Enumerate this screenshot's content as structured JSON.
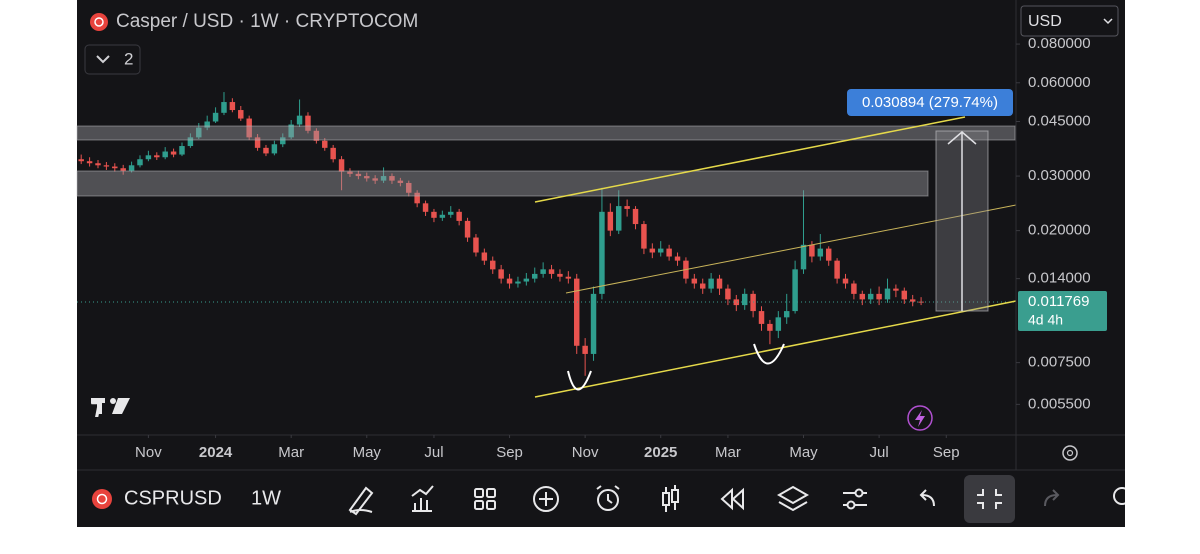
{
  "header": {
    "title": "Casper / USD · 1W · CRYPTOCOM",
    "indicator_count": "2",
    "currency": "USD"
  },
  "chart_data": {
    "type": "candlestick",
    "up_color": "#2f9e8e",
    "down_color": "#e8534f",
    "log_scale": true,
    "xlim": [
      -0.5,
      111.3
    ],
    "xticks": [
      {
        "value": 8,
        "label": "Nov"
      },
      {
        "value": 16,
        "label": "2024"
      },
      {
        "value": 25,
        "label": "Mar"
      },
      {
        "value": 34,
        "label": "May"
      },
      {
        "value": 42,
        "label": "Jul"
      },
      {
        "value": 51,
        "label": "Sep"
      },
      {
        "value": 60,
        "label": "Nov"
      },
      {
        "value": 69,
        "label": "2025"
      },
      {
        "value": 77,
        "label": "Mar"
      },
      {
        "value": 86,
        "label": "May"
      },
      {
        "value": 95,
        "label": "Jul"
      },
      {
        "value": 103,
        "label": "Sep"
      }
    ],
    "ylim": [
      0.00438,
      0.111
    ],
    "yticks": [
      {
        "value": 0.08,
        "label": "0.080000"
      },
      {
        "value": 0.06,
        "label": "0.060000"
      },
      {
        "value": 0.045,
        "label": "0.045000"
      },
      {
        "value": 0.03,
        "label": "0.030000"
      },
      {
        "value": 0.02,
        "label": "0.020000"
      },
      {
        "value": 0.014,
        "label": "0.014000"
      },
      {
        "value": 0.0075,
        "label": "0.007500"
      },
      {
        "value": 0.0055,
        "label": "0.005500"
      }
    ],
    "open": [
      0.034,
      0.0335,
      0.033,
      0.0325,
      0.0322,
      0.0318,
      0.0312,
      0.0325,
      0.034,
      0.035,
      0.0345,
      0.036,
      0.0352,
      0.0375,
      0.04,
      0.043,
      0.045,
      0.048,
      0.052,
      0.049,
      0.046,
      0.04,
      0.037,
      0.0355,
      0.038,
      0.04,
      0.044,
      0.047,
      0.042,
      0.039,
      0.037,
      0.034,
      0.031,
      0.0305,
      0.03,
      0.0295,
      0.029,
      0.03,
      0.029,
      0.0285,
      0.0265,
      0.0245,
      0.023,
      0.022,
      0.0225,
      0.023,
      0.0215,
      0.019,
      0.017,
      0.016,
      0.015,
      0.014,
      0.0135,
      0.0137,
      0.014,
      0.0145,
      0.015,
      0.0145,
      0.0142,
      0.014,
      0.0085,
      0.008,
      0.0125,
      0.023,
      0.02,
      0.024,
      0.0235,
      0.021,
      0.0175,
      0.017,
      0.0175,
      0.0165,
      0.016,
      0.014,
      0.0135,
      0.013,
      0.014,
      0.013,
      0.012,
      0.0115,
      0.0125,
      0.011,
      0.01,
      0.0095,
      0.0105,
      0.011,
      0.015,
      0.018,
      0.0165,
      0.0175,
      0.016,
      0.014,
      0.0135,
      0.0125,
      0.012,
      0.0125,
      0.012,
      0.013,
      0.0128,
      0.012,
      0.0118
    ],
    "high": [
      0.0352,
      0.0345,
      0.0338,
      0.0333,
      0.033,
      0.0326,
      0.0334,
      0.035,
      0.0362,
      0.0358,
      0.0372,
      0.0368,
      0.0385,
      0.0412,
      0.0445,
      0.047,
      0.05,
      0.056,
      0.0535,
      0.0505,
      0.047,
      0.041,
      0.0378,
      0.039,
      0.0412,
      0.0455,
      0.053,
      0.0482,
      0.0428,
      0.0398,
      0.0378,
      0.0348,
      0.0318,
      0.0312,
      0.0308,
      0.0302,
      0.032,
      0.0306,
      0.0296,
      0.029,
      0.027,
      0.025,
      0.0235,
      0.0232,
      0.024,
      0.0235,
      0.022,
      0.0195,
      0.0175,
      0.0165,
      0.0155,
      0.0145,
      0.0142,
      0.0146,
      0.0152,
      0.0158,
      0.0155,
      0.015,
      0.0148,
      0.0145,
      0.009,
      0.0132,
      0.0275,
      0.0245,
      0.027,
      0.0252,
      0.024,
      0.0215,
      0.0182,
      0.0185,
      0.018,
      0.017,
      0.0164,
      0.0145,
      0.014,
      0.0146,
      0.0144,
      0.0134,
      0.0124,
      0.013,
      0.0128,
      0.0114,
      0.0103,
      0.011,
      0.0125,
      0.016,
      0.027,
      0.0185,
      0.0195,
      0.0178,
      0.0163,
      0.0145,
      0.0138,
      0.0128,
      0.013,
      0.0132,
      0.014,
      0.0134,
      0.0131,
      0.0124,
      0.0122
    ],
    "low": [
      0.0328,
      0.0322,
      0.0318,
      0.0314,
      0.031,
      0.0303,
      0.0308,
      0.032,
      0.0335,
      0.0338,
      0.034,
      0.0345,
      0.0348,
      0.037,
      0.0395,
      0.0422,
      0.0445,
      0.0472,
      0.0482,
      0.0452,
      0.0392,
      0.0362,
      0.0348,
      0.035,
      0.0372,
      0.0395,
      0.0432,
      0.0412,
      0.0382,
      0.0362,
      0.0332,
      0.027,
      0.0298,
      0.0293,
      0.0288,
      0.0283,
      0.0285,
      0.0283,
      0.0278,
      0.0258,
      0.0238,
      0.0223,
      0.0213,
      0.0215,
      0.022,
      0.0208,
      0.0184,
      0.0165,
      0.0155,
      0.0145,
      0.0135,
      0.013,
      0.0131,
      0.0133,
      0.0136,
      0.0141,
      0.014,
      0.0137,
      0.0135,
      0.008,
      0.0068,
      0.0076,
      0.012,
      0.0192,
      0.0195,
      0.0222,
      0.0202,
      0.0168,
      0.0163,
      0.0165,
      0.016,
      0.0154,
      0.0135,
      0.013,
      0.0125,
      0.0126,
      0.0124,
      0.0115,
      0.011,
      0.0111,
      0.0105,
      0.0095,
      0.0086,
      0.009,
      0.01,
      0.0108,
      0.0145,
      0.0158,
      0.016,
      0.0154,
      0.0135,
      0.013,
      0.012,
      0.0115,
      0.0116,
      0.0115,
      0.0117,
      0.0122,
      0.0116,
      0.0114,
      0.0115
    ],
    "close": [
      0.0335,
      0.033,
      0.0325,
      0.0322,
      0.0318,
      0.0312,
      0.0325,
      0.034,
      0.035,
      0.0345,
      0.036,
      0.0352,
      0.0375,
      0.04,
      0.043,
      0.045,
      0.048,
      0.052,
      0.049,
      0.046,
      0.04,
      0.037,
      0.0355,
      0.038,
      0.04,
      0.044,
      0.047,
      0.042,
      0.039,
      0.037,
      0.034,
      0.031,
      0.0305,
      0.03,
      0.0295,
      0.029,
      0.03,
      0.029,
      0.0285,
      0.0265,
      0.0245,
      0.023,
      0.022,
      0.0225,
      0.023,
      0.0215,
      0.019,
      0.017,
      0.016,
      0.015,
      0.014,
      0.0135,
      0.0137,
      0.014,
      0.0145,
      0.015,
      0.0145,
      0.0142,
      0.014,
      0.0085,
      0.008,
      0.0125,
      0.023,
      0.02,
      0.024,
      0.0235,
      0.021,
      0.0175,
      0.017,
      0.0175,
      0.0165,
      0.016,
      0.014,
      0.0135,
      0.013,
      0.014,
      0.013,
      0.012,
      0.0115,
      0.0125,
      0.011,
      0.01,
      0.0095,
      0.0105,
      0.011,
      0.015,
      0.018,
      0.0165,
      0.0175,
      0.016,
      0.014,
      0.0135,
      0.0125,
      0.012,
      0.0125,
      0.012,
      0.013,
      0.0128,
      0.012,
      0.0118,
      0.011769
    ],
    "last_price": 0.011769,
    "countdown": "4d 4h",
    "measure_label": "0.030894 (279.74%)"
  },
  "toolbar": {
    "symbol": "CSPRUSD",
    "interval": "1W"
  }
}
